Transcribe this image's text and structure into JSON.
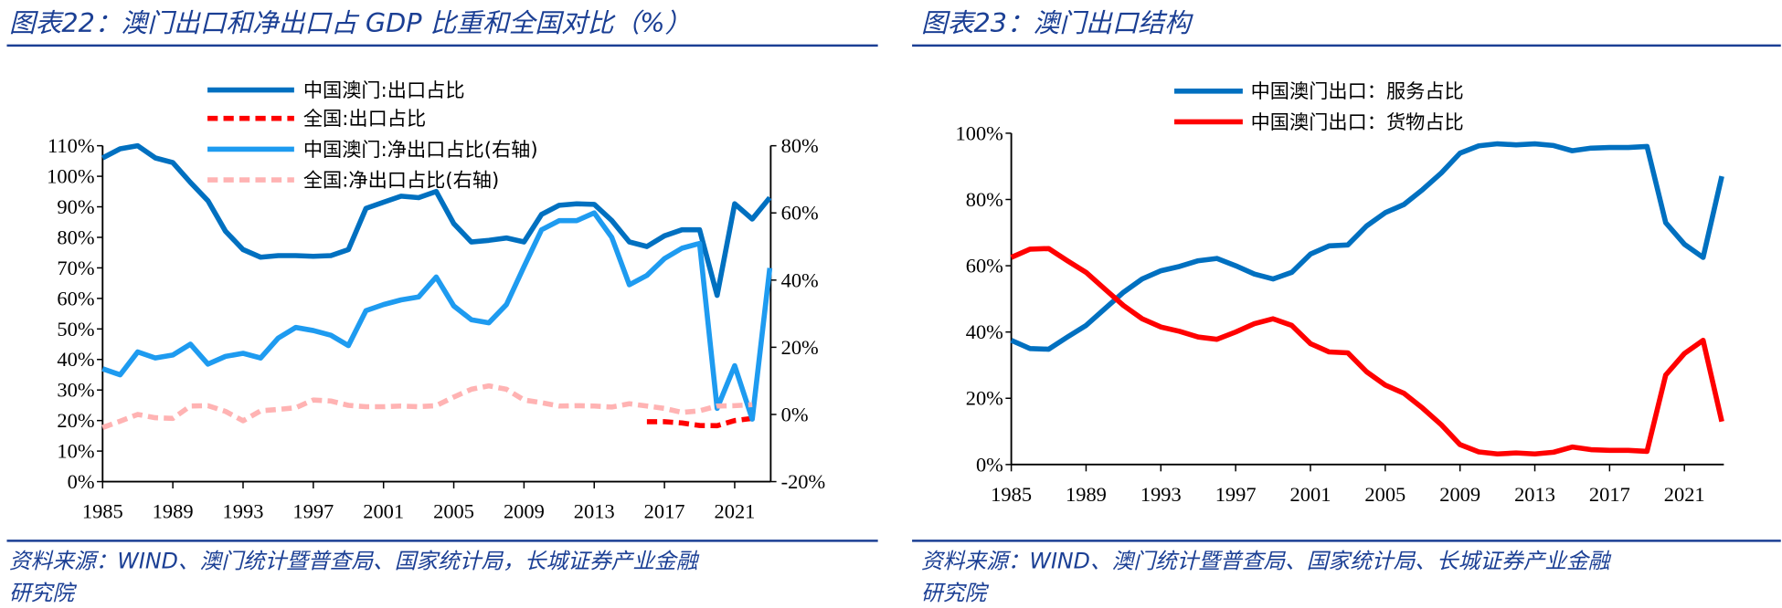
{
  "left": {
    "title": "图表22：澳门出口和净出口占 GDP 比重和全国对比（%）",
    "source_line1": "资料来源：WIND、澳门统计暨普查局、国家统计局，长城证券产业金融",
    "source_line2": "研究院"
  },
  "right": {
    "title": "图表23：澳门出口结构",
    "source_line1": "资料来源：WIND、澳门统计暨普查局、国家统计局、长城证券产业金融",
    "source_line2": "研究院"
  },
  "chart_data": [
    {
      "type": "line",
      "title": "图表22：澳门出口和净出口占 GDP 比重和全国对比（%）",
      "x": [
        1985,
        1986,
        1987,
        1988,
        1989,
        1990,
        1991,
        1992,
        1993,
        1994,
        1995,
        1996,
        1997,
        1998,
        1999,
        2000,
        2001,
        2002,
        2003,
        2004,
        2005,
        2006,
        2007,
        2008,
        2009,
        2010,
        2011,
        2012,
        2013,
        2014,
        2015,
        2016,
        2017,
        2018,
        2019,
        2020,
        2021,
        2022,
        2023
      ],
      "x_ticks": [
        "1985",
        "1989",
        "1993",
        "1997",
        "2001",
        "2005",
        "2009",
        "2013",
        "2017",
        "2021"
      ],
      "y_left": {
        "range": [
          0,
          110
        ],
        "ticks": [
          "0%",
          "10%",
          "20%",
          "30%",
          "40%",
          "50%",
          "60%",
          "70%",
          "80%",
          "90%",
          "100%",
          "110%"
        ]
      },
      "y_right": {
        "range": [
          -20,
          80
        ],
        "ticks": [
          "-20%",
          "0%",
          "20%",
          "40%",
          "60%",
          "80%"
        ]
      },
      "grid": false,
      "legend_position": "top-center",
      "series": [
        {
          "name": "中国澳门:出口占比",
          "axis": "left",
          "color": "#0070C0",
          "dash": false,
          "values": [
            106,
            109,
            110,
            106,
            104.5,
            98,
            92,
            82,
            76,
            73.5,
            74,
            74,
            73.8,
            74,
            76,
            89.5,
            91.5,
            93.5,
            93,
            95,
            84.5,
            78.5,
            79,
            79.8,
            78.5,
            87.5,
            90.5,
            91,
            90.8,
            85.5,
            78.5,
            77,
            80.5,
            82.5,
            82.5,
            61,
            91,
            86,
            93
          ]
        },
        {
          "name": "全国:出口占比",
          "axis": "left",
          "color": "#FF0000",
          "dash": true,
          "values": [
            null,
            null,
            null,
            null,
            null,
            null,
            null,
            null,
            null,
            null,
            null,
            null,
            null,
            null,
            null,
            null,
            null,
            null,
            null,
            null,
            null,
            null,
            null,
            null,
            null,
            null,
            null,
            null,
            null,
            null,
            null,
            19.6,
            19.6,
            19.2,
            18.4,
            18.3,
            20,
            20.7,
            null
          ]
        },
        {
          "name": "中国澳门:净出口占比(右轴)",
          "axis": "right",
          "color": "#1E9BF0",
          "dash": false,
          "values": [
            13.6,
            11.8,
            18.6,
            16.8,
            17.7,
            20.9,
            15,
            17.3,
            18.2,
            16.8,
            22.7,
            25.9,
            25,
            23.6,
            20.5,
            30.9,
            32.7,
            34.1,
            35,
            40.9,
            32.3,
            28.2,
            27.3,
            32.7,
            44,
            55,
            57.7,
            57.7,
            60,
            52.7,
            38.6,
            41.4,
            46.4,
            49.5,
            50.9,
            1.8,
            14.5,
            -1.4,
            43.6
          ]
        },
        {
          "name": "全国:净出口占比(右轴)",
          "axis": "right",
          "color": "#FFB3B3",
          "dash": true,
          "values": [
            -3.9,
            -2,
            0,
            -1,
            -1.2,
            2.5,
            2.6,
            0.9,
            -1.9,
            1.1,
            1.5,
            2,
            4.3,
            4,
            2.7,
            2.3,
            2.3,
            2.5,
            2.3,
            2.6,
            5.2,
            7.5,
            8.5,
            7.5,
            4.3,
            3.5,
            2.5,
            2.6,
            2.5,
            2.2,
            3.2,
            2.5,
            1.8,
            0.6,
            1.1,
            2.5,
            2.6,
            2.9,
            null
          ]
        }
      ]
    },
    {
      "type": "line",
      "title": "图表23：澳门出口结构",
      "x": [
        1985,
        1986,
        1987,
        1988,
        1989,
        1990,
        1991,
        1992,
        1993,
        1994,
        1995,
        1996,
        1997,
        1998,
        1999,
        2000,
        2001,
        2002,
        2003,
        2004,
        2005,
        2006,
        2007,
        2008,
        2009,
        2010,
        2011,
        2012,
        2013,
        2014,
        2015,
        2016,
        2017,
        2018,
        2019,
        2020,
        2021,
        2022,
        2023
      ],
      "x_ticks": [
        "1985",
        "1989",
        "1993",
        "1997",
        "2001",
        "2005",
        "2009",
        "2013",
        "2017",
        "2021"
      ],
      "y_left": {
        "range": [
          0,
          100
        ],
        "ticks": [
          "0%",
          "20%",
          "40%",
          "60%",
          "80%",
          "100%"
        ]
      },
      "grid": false,
      "legend_position": "top-center",
      "series": [
        {
          "name": "中国澳门出口：服务占比",
          "axis": "left",
          "color": "#0070C0",
          "dash": false,
          "values": [
            37.5,
            35,
            34.8,
            38.5,
            42,
            47,
            52,
            56,
            58.5,
            59.8,
            61.5,
            62.2,
            60,
            57.5,
            56,
            58,
            63.5,
            66,
            66.3,
            72,
            76,
            78.5,
            83,
            88,
            94,
            96.2,
            96.8,
            96.5,
            96.8,
            96.3,
            94.7,
            95.5,
            95.7,
            95.7,
            96,
            73,
            66.5,
            62.5,
            87
          ]
        },
        {
          "name": "中国澳门出口：货物占比",
          "axis": "left",
          "color": "#FF0000",
          "dash": false,
          "values": [
            62.5,
            65,
            65.2,
            61.5,
            58,
            53,
            48,
            44,
            41.5,
            40.2,
            38.5,
            37.8,
            40,
            42.5,
            44,
            42,
            36.5,
            34,
            33.7,
            28,
            24,
            21.5,
            17,
            12,
            6,
            3.8,
            3.2,
            3.5,
            3.2,
            3.7,
            5.3,
            4.5,
            4.3,
            4.3,
            4,
            27,
            33.5,
            37.5,
            13
          ]
        }
      ]
    }
  ]
}
